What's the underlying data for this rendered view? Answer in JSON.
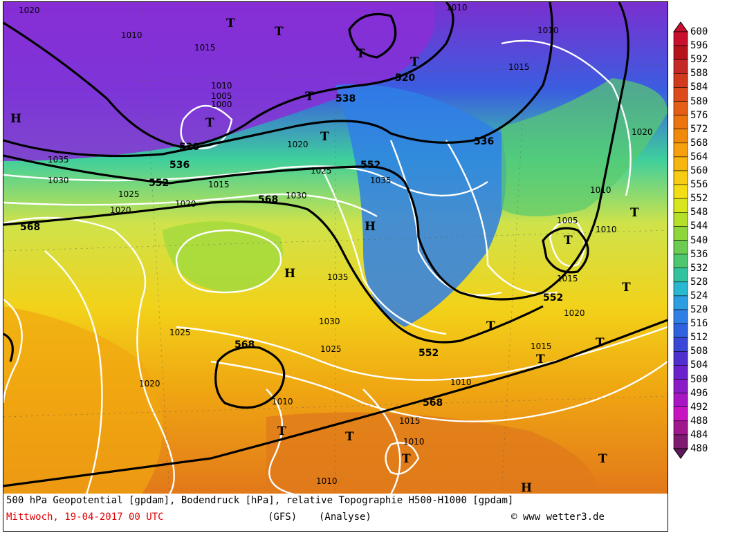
{
  "caption": {
    "line1": "500 hPa Geopotential [gpdam], Bodendruck [hPa], relative Topographie H500-H1000 [gpdam]",
    "date": "Mittwoch, 19-04-2017  00 UTC",
    "model": "(GFS)",
    "run": "(Analyse)",
    "credit": "www wetter3.de"
  },
  "legend": {
    "levels": [
      "600",
      "596",
      "592",
      "588",
      "584",
      "580",
      "576",
      "572",
      "568",
      "564",
      "560",
      "556",
      "552",
      "548",
      "544",
      "540",
      "536",
      "532",
      "528",
      "524",
      "520",
      "516",
      "512",
      "508",
      "504",
      "500",
      "496",
      "492",
      "488",
      "484",
      "480"
    ],
    "colors": [
      "#c8102e",
      "#b5121b",
      "#c62828",
      "#d23a1e",
      "#dd4a1c",
      "#e55e16",
      "#ec7410",
      "#f08a0a",
      "#f5a00c",
      "#f7b60f",
      "#f7cc12",
      "#f3de15",
      "#d8e61f",
      "#b4e02a",
      "#8fd63a",
      "#6ccc52",
      "#4ec66e",
      "#33c2a0",
      "#29b8d0",
      "#2d9ee2",
      "#2f80e6",
      "#2f62df",
      "#3a46d6",
      "#4f30cf",
      "#6a22cc",
      "#8a1cc8",
      "#a816c4",
      "#c813c0",
      "#a0188c",
      "#7e1a70",
      "#5c1a5a"
    ]
  },
  "map": {
    "isobar_labels": [
      "1020",
      "1010",
      "1015",
      "1035",
      "1030",
      "1025",
      "1020",
      "1005",
      "1000",
      "1010",
      "1020",
      "1035",
      "1030",
      "1025",
      "1015",
      "1010",
      "1020",
      "1015",
      "1010",
      "1010",
      "1015",
      "1020",
      "1025",
      "1030",
      "1035",
      "1010",
      "1010",
      "1015",
      "1020",
      "1025",
      "1010",
      "1005",
      "1010",
      "1015",
      "1020",
      "1010"
    ],
    "geopotential_labels": [
      "520",
      "536",
      "552",
      "568",
      "568",
      "536",
      "552",
      "568",
      "552",
      "552",
      "568",
      "538",
      "520"
    ],
    "high_symbol": "H",
    "low_symbol": "T"
  }
}
